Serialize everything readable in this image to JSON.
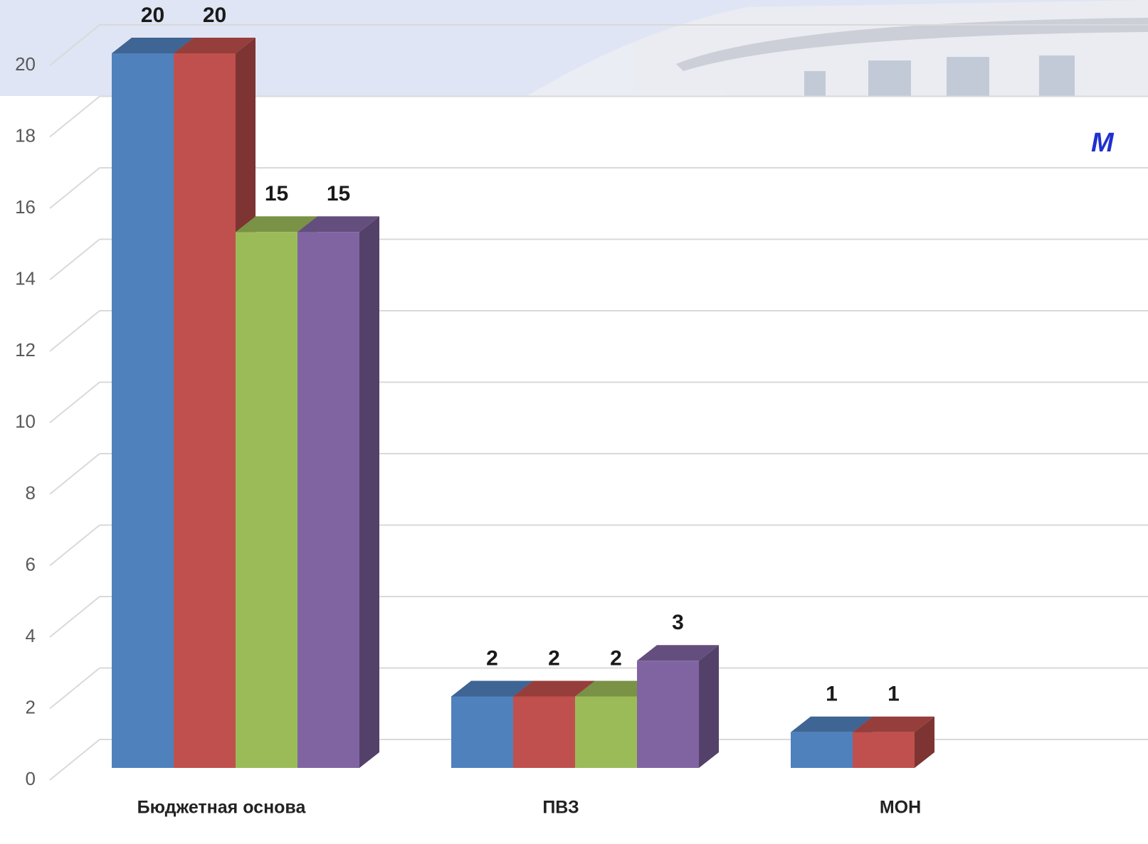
{
  "chart_data": {
    "type": "bar3d",
    "title": "М",
    "categories": [
      "Бюджетная основа",
      "ПВЗ",
      "МОН"
    ],
    "series": [
      {
        "color": "#4f81bd",
        "values": [
          20,
          2,
          1
        ]
      },
      {
        "color": "#c0504d",
        "values": [
          20,
          2,
          1
        ]
      },
      {
        "color": "#9bbb59",
        "values": [
          15,
          2,
          null
        ]
      },
      {
        "color": "#8064a2",
        "values": [
          15,
          3,
          null
        ]
      }
    ],
    "ylim": [
      0,
      20
    ],
    "yticks": [
      0,
      2,
      4,
      6,
      8,
      10,
      12,
      14,
      16,
      18,
      20
    ],
    "grid": true
  }
}
